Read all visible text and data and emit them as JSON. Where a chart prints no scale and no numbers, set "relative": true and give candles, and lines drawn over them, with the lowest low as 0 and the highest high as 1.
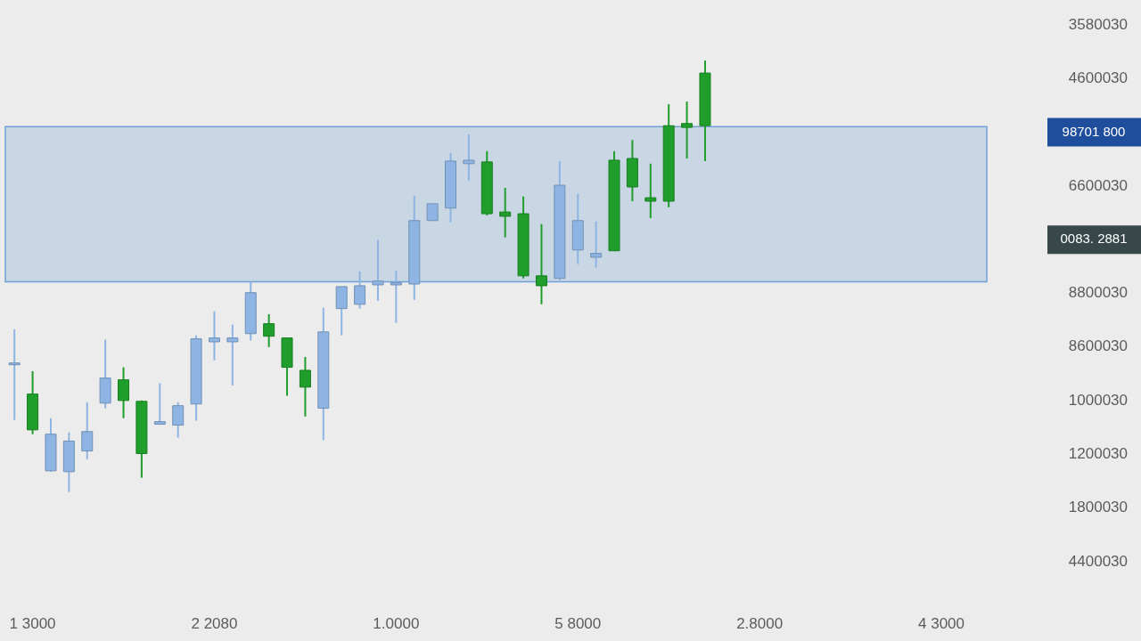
{
  "chart_data": {
    "type": "candlestick",
    "relative": true,
    "categories": [
      null,
      "1 3000",
      null,
      null,
      null,
      null,
      null,
      null,
      null,
      null,
      null,
      "2 2080",
      null,
      null,
      null,
      null,
      null,
      null,
      null,
      null,
      null,
      "1.0000",
      null,
      null,
      null,
      null,
      null,
      null,
      null,
      null,
      null,
      "5 8000",
      null,
      null,
      null,
      null,
      null,
      null,
      null,
      null,
      null,
      "2.8000",
      null,
      null,
      null,
      null,
      null,
      null,
      null,
      null,
      null,
      "4 3000",
      null,
      null
    ],
    "ohlc": [
      [
        0.299,
        0.377,
        0.167,
        0.295
      ],
      [
        0.144,
        0.28,
        0.134,
        0.227
      ],
      [
        0.134,
        0.171,
        0.047,
        0.049
      ],
      [
        0.118,
        0.138,
        0,
        0.047
      ],
      [
        0.14,
        0.208,
        0.076,
        0.095
      ],
      [
        0.264,
        0.353,
        0.194,
        0.206
      ],
      [
        0.212,
        0.289,
        0.171,
        0.26
      ],
      [
        0.089,
        0.212,
        0.033,
        0.21
      ],
      [
        0.163,
        0.252,
        0.157,
        0.157
      ],
      [
        0.2,
        0.208,
        0.126,
        0.155
      ],
      [
        0.355,
        0.363,
        0.165,
        0.204
      ],
      [
        0.357,
        0.419,
        0.305,
        0.348
      ],
      [
        0.357,
        0.388,
        0.247,
        0.348
      ],
      [
        0.462,
        0.487,
        0.351,
        0.367
      ],
      [
        0.361,
        0.412,
        0.336,
        0.39
      ],
      [
        0.289,
        0.357,
        0.223,
        0.357
      ],
      [
        0.243,
        0.313,
        0.175,
        0.282
      ],
      [
        0.371,
        0.427,
        0.12,
        0.194
      ],
      [
        0.476,
        0.476,
        0.363,
        0.425
      ],
      [
        0.478,
        0.511,
        0.425,
        0.435
      ],
      [
        0.489,
        0.584,
        0.443,
        0.48
      ],
      [
        0.485,
        0.513,
        0.392,
        0.48
      ],
      [
        0.629,
        0.687,
        0.445,
        0.482
      ],
      [
        0.668,
        0.668,
        0.629,
        0.629
      ],
      [
        0.767,
        0.786,
        0.625,
        0.658
      ],
      [
        0.769,
        0.829,
        0.722,
        0.761
      ],
      [
        0.645,
        0.79,
        0.641,
        0.765
      ],
      [
        0.639,
        0.705,
        0.59,
        0.649
      ],
      [
        0.501,
        0.685,
        0.495,
        0.645
      ],
      [
        0.478,
        0.621,
        0.435,
        0.501
      ],
      [
        0.711,
        0.767,
        0.491,
        0.495
      ],
      [
        0.629,
        0.691,
        0.528,
        0.561
      ],
      [
        0.553,
        0.627,
        0.52,
        0.544
      ],
      [
        0.559,
        0.79,
        0.559,
        0.769
      ],
      [
        0.707,
        0.816,
        0.674,
        0.773
      ],
      [
        0.674,
        0.761,
        0.635,
        0.682
      ],
      [
        0.674,
        0.899,
        0.66,
        0.849
      ],
      [
        0.845,
        0.905,
        0.773,
        0.854
      ],
      [
        0.849,
        1,
        0.767,
        0.971
      ],
      null,
      null,
      null,
      null,
      null,
      null,
      null,
      null,
      null,
      null,
      null,
      null,
      null,
      null,
      null
    ],
    "colors": [
      "#8db4e2",
      "#1f9e2b",
      "#8db4e2",
      "#8db4e2",
      "#8db4e2",
      "#8db4e2",
      "#1f9e2b",
      "#1f9e2b",
      "#8db4e2",
      "#8db4e2",
      "#8db4e2",
      "#8db4e2",
      "#8db4e2",
      "#8db4e2",
      "#1f9e2b",
      "#1f9e2b",
      "#1f9e2b",
      "#8db4e2",
      "#8db4e2",
      "#8db4e2",
      "#8db4e2",
      "#8db4e2",
      "#8db4e2",
      "#8db4e2",
      "#8db4e2",
      "#8db4e2",
      "#1f9e2b",
      "#1f9e2b",
      "#1f9e2b",
      "#1f9e2b",
      "#8db4e2",
      "#8db4e2",
      "#8db4e2",
      "#1f9e2b",
      "#1f9e2b",
      "#1f9e2b",
      "#1f9e2b",
      "#1f9e2b",
      "#1f9e2b",
      null,
      null,
      null,
      null,
      null,
      null,
      null,
      null,
      null,
      null,
      null,
      null,
      null,
      null,
      null
    ],
    "bands": [
      {
        "axis": "y",
        "from": 0.487,
        "to": 0.847,
        "color": "#6fa0d5"
      }
    ],
    "annotations": [
      "3580030",
      "4600030",
      "98701 800",
      "6600030",
      "0083. 2881",
      "8800030",
      "8600030",
      "1000030",
      "1200030",
      "1800030",
      "4400030"
    ]
  }
}
